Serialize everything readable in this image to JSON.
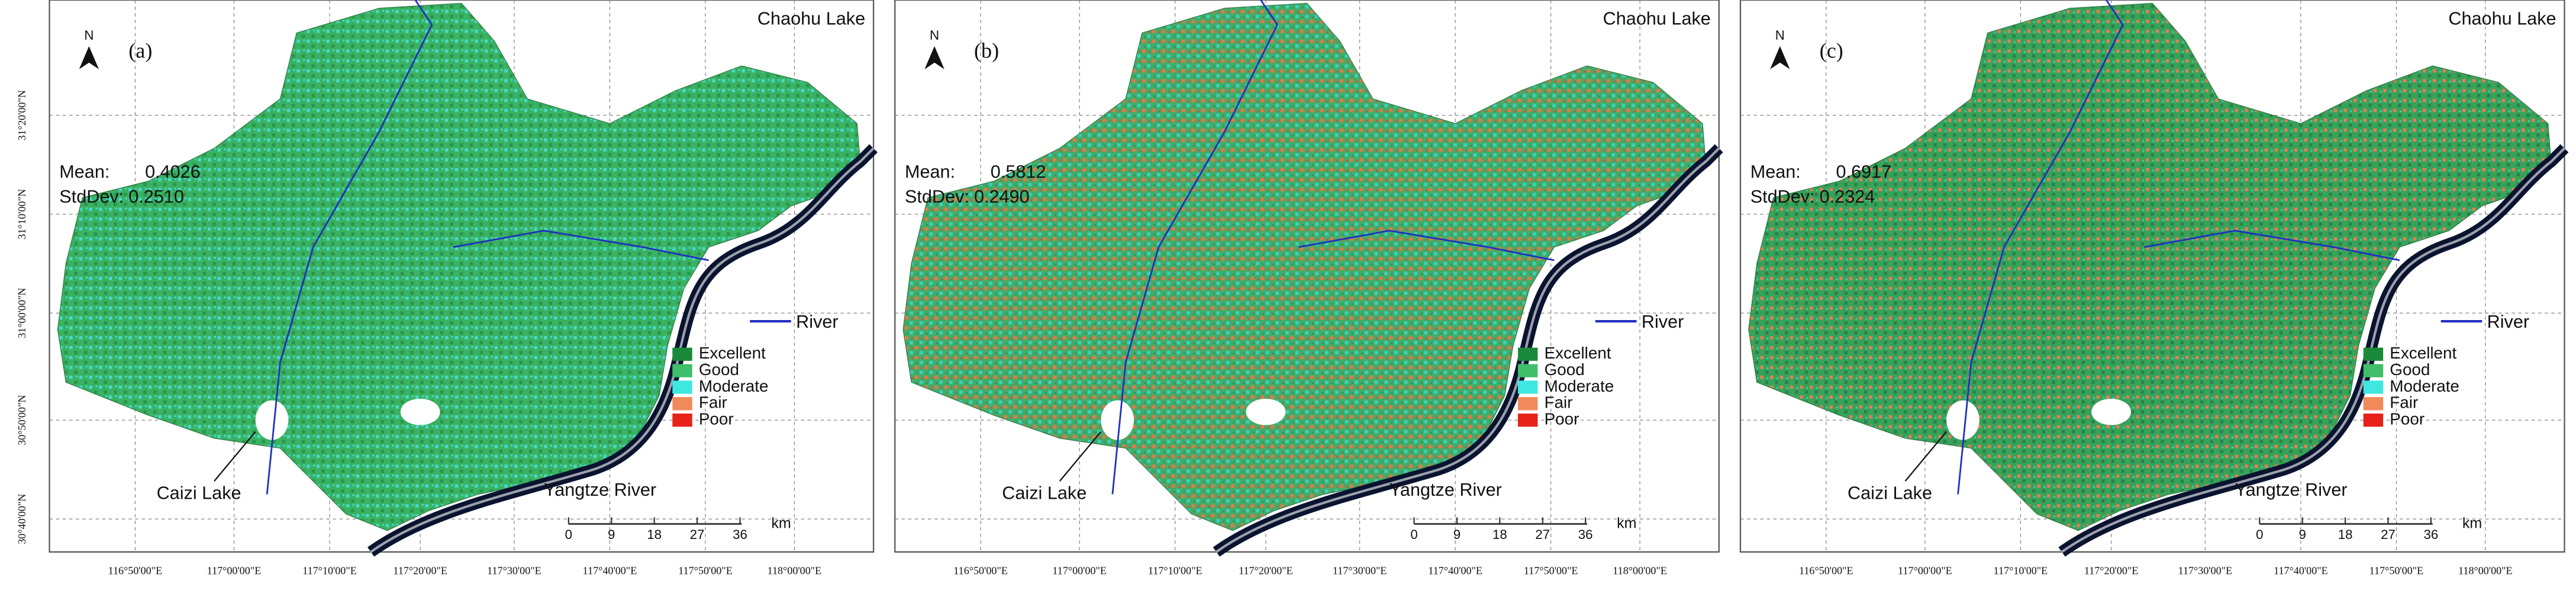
{
  "panels": [
    {
      "label": "(a)",
      "mean": "0.4026",
      "stddev": "0.2510"
    },
    {
      "label": "(b)",
      "mean": "0.5812",
      "stddev": "0.2490"
    },
    {
      "label": "(c)",
      "mean": "0.6917",
      "stddev": "0.2324"
    }
  ],
  "north": "N",
  "mean_label": "Mean:",
  "stddev_label": "StdDev:",
  "lake_label": "Chaohu Lake",
  "river_label": "River",
  "caizi_label": "Caizi Lake",
  "yangtze_label": "Yangtze River",
  "legend": [
    {
      "name": "Excellent",
      "color": "#1a8a3a"
    },
    {
      "name": "Good",
      "color": "#3fbf6a"
    },
    {
      "name": "Moderate",
      "color": "#3ee8e0"
    },
    {
      "name": "Fair",
      "color": "#f08a5a"
    },
    {
      "name": "Poor",
      "color": "#e8221a"
    }
  ],
  "scale_ticks": [
    "0",
    "9",
    "18",
    "27",
    "36"
  ],
  "scale_unit": "km",
  "lon_labels": [
    "116°50'00\"E",
    "117°00'00\"E",
    "117°10'00\"E",
    "117°20'00\"E",
    "117°30'00\"E",
    "117°40'00\"E",
    "117°50'00\"E",
    "118°00'00\"E"
  ],
  "lat_labels": [
    "31°20'00\"N",
    "31°10'00\"N",
    "31°00'00\"N",
    "30°50'00\"N",
    "30°40'00\"N"
  ]
}
